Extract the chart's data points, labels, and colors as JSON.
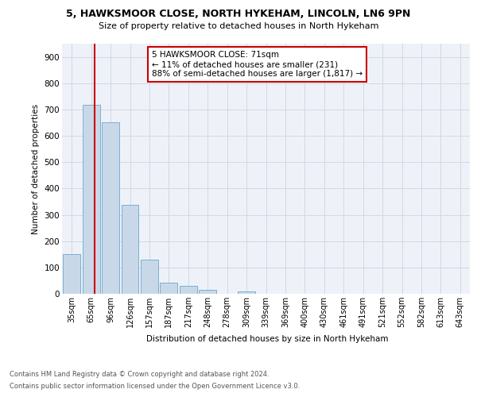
{
  "title1": "5, HAWKSMOOR CLOSE, NORTH HYKEHAM, LINCOLN, LN6 9PN",
  "title2": "Size of property relative to detached houses in North Hykeham",
  "xlabel": "Distribution of detached houses by size in North Hykeham",
  "ylabel": "Number of detached properties",
  "categories": [
    "35sqm",
    "65sqm",
    "96sqm",
    "126sqm",
    "157sqm",
    "187sqm",
    "217sqm",
    "248sqm",
    "278sqm",
    "309sqm",
    "339sqm",
    "369sqm",
    "400sqm",
    "430sqm",
    "461sqm",
    "491sqm",
    "521sqm",
    "552sqm",
    "582sqm",
    "613sqm",
    "643sqm"
  ],
  "values": [
    150,
    718,
    650,
    338,
    130,
    43,
    30,
    14,
    0,
    10,
    0,
    0,
    0,
    0,
    0,
    0,
    0,
    0,
    0,
    0,
    0
  ],
  "bar_color": "#c8d8e8",
  "bar_edge_color": "#7bafd4",
  "subject_line_color": "#cc0000",
  "annotation_text": "5 HAWKSMOOR CLOSE: 71sqm\n← 11% of detached houses are smaller (231)\n88% of semi-detached houses are larger (1,817) →",
  "annotation_box_color": "#cc0000",
  "grid_color": "#d0d8e8",
  "background_color": "#eef2f8",
  "footer1": "Contains HM Land Registry data © Crown copyright and database right 2024.",
  "footer2": "Contains public sector information licensed under the Open Government Licence v3.0.",
  "ylim": [
    0,
    950
  ],
  "yticks": [
    0,
    100,
    200,
    300,
    400,
    500,
    600,
    700,
    800,
    900
  ]
}
